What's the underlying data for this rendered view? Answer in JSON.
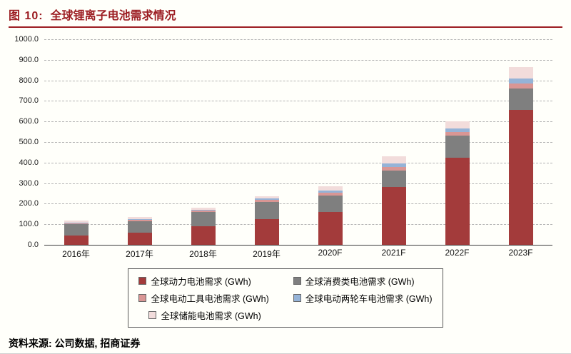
{
  "header": {
    "figure_label": "图 10:",
    "title": "全球锂离子电池需求情况"
  },
  "source_note": "资料来源: 公司数据, 招商证券",
  "colors": {
    "accent_red": "#9c1d22",
    "axis": "#3c3c3c",
    "gridline": "#b3b3b3"
  },
  "chart_data": {
    "type": "bar",
    "stacked": true,
    "title": "全球锂离子电池需求情况",
    "xlabel": "",
    "ylabel": "",
    "ylim": [
      0,
      1000
    ],
    "ytick_step": 100,
    "ytick_format_decimals": 1,
    "grid": "horizontal-dashed",
    "legend_position": "bottom",
    "categories": [
      "2016年",
      "2017年",
      "2018年",
      "2019年",
      "2020F",
      "2021F",
      "2022F",
      "2023F"
    ],
    "series": [
      {
        "name": "全球动力电池需求 (GWh)",
        "color": "#a33b3b",
        "values": [
          45,
          60,
          90,
          125,
          160,
          280,
          425,
          655
        ]
      },
      {
        "name": "全球消费类电池需求 (GWh)",
        "color": "#7f7f7f",
        "values": [
          55,
          55,
          70,
          85,
          80,
          80,
          105,
          105
        ]
      },
      {
        "name": "全球电动工具电池需求 (GWh)",
        "color": "#d99694",
        "values": [
          5,
          8,
          8,
          10,
          15,
          20,
          20,
          25
        ]
      },
      {
        "name": "全球电动两轮车电池需求 (GWh)",
        "color": "#95b3d7",
        "values": [
          3,
          3,
          4,
          5,
          8,
          15,
          15,
          25
        ]
      },
      {
        "name": "全球储能电池需求 (GWh)",
        "color": "#f2dcdb",
        "values": [
          10,
          10,
          10,
          12,
          22,
          35,
          35,
          55
        ]
      }
    ],
    "totals": [
      118,
      136,
      182,
      237,
      285,
      430,
      600,
      865
    ]
  }
}
